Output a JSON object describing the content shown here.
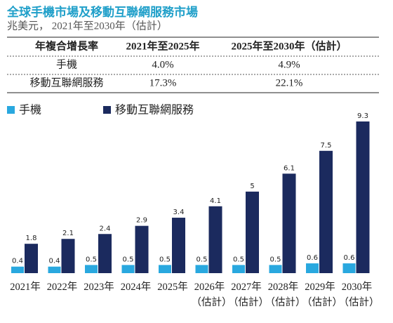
{
  "chart_data": {
    "type": "bar",
    "title": "全球手機市場及移動互聯網服務市場",
    "subtitle": "兆美元， 2021年至2030年（估計）",
    "table": {
      "header": [
        "年複合增長率",
        "2021年至2025年",
        "2025年至2030年（估計）"
      ],
      "rows": [
        [
          "手機",
          "4.0%",
          "4.9%"
        ],
        [
          "移動互聯網服務",
          "17.3%",
          "22.1%"
        ]
      ]
    },
    "categories": [
      "2021年",
      "2022年",
      "2023年",
      "2024年",
      "2025年",
      "2026年（估計）",
      "2027年（估計）",
      "2028年（估計）",
      "2029年（估計）",
      "2030年（估計）"
    ],
    "series": [
      {
        "name": "手機",
        "color": "#29a8df",
        "values": [
          0.4,
          0.4,
          0.5,
          0.5,
          0.5,
          0.5,
          0.5,
          0.5,
          0.6,
          0.6
        ]
      },
      {
        "name": "移動互聯網服務",
        "color": "#1b2a5e",
        "values": [
          1.8,
          2.1,
          2.4,
          2.9,
          3.4,
          4.1,
          5.0,
          6.1,
          7.5,
          9.3
        ]
      }
    ]
  }
}
